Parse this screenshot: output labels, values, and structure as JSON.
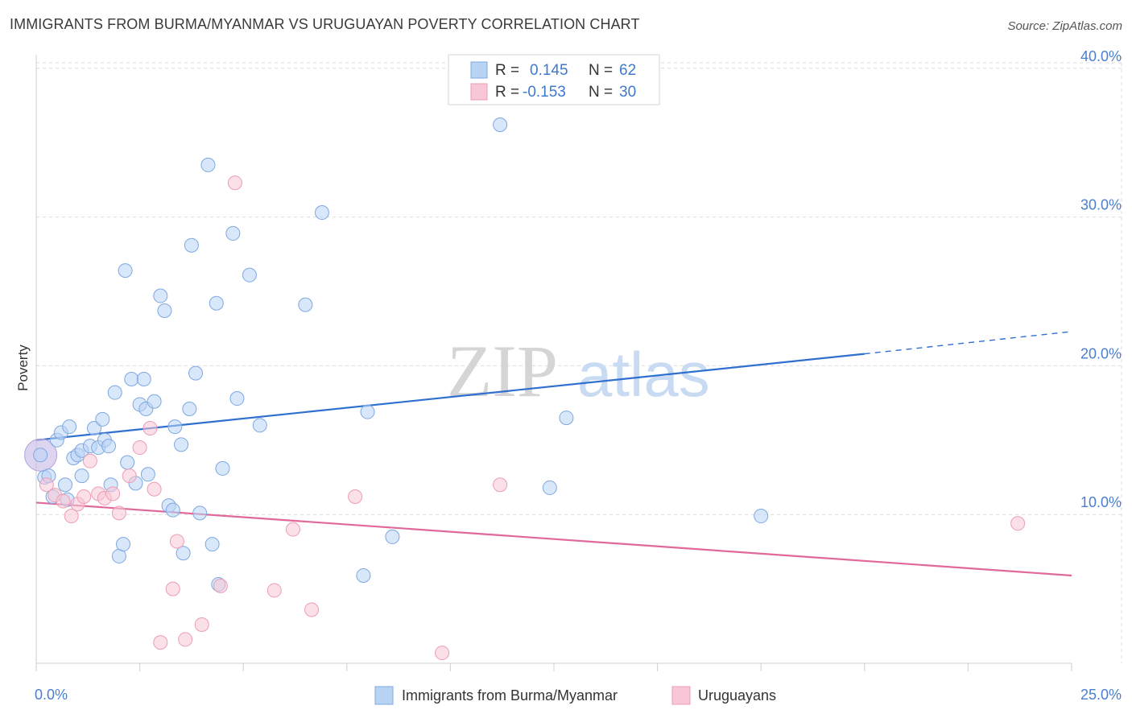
{
  "title": "IMMIGRANTS FROM BURMA/MYANMAR VS URUGUAYAN POVERTY CORRELATION CHART",
  "source": "Source: ZipAtlas.com",
  "watermark": {
    "zip": "ZIP",
    "atlas": "atlas"
  },
  "colors": {
    "blue_fill": "#b9d3f5",
    "blue_stroke": "#7ea8e0",
    "blue_line": "#2e6fd0",
    "pink_fill": "#f8c6d6",
    "pink_stroke": "#ec9db6",
    "pink_line": "#e0689a",
    "axis_text": "#4a7fd0",
    "grid": "#dcdcdc"
  },
  "legend": {
    "r_label": "R =",
    "n_label": "N =",
    "rows": [
      {
        "series": "blue",
        "r": "0.145",
        "n": "62"
      },
      {
        "series": "pink",
        "r": "-0.153",
        "n": "30"
      }
    ]
  },
  "chart_data": {
    "type": "scatter",
    "title": "IMMIGRANTS FROM BURMA/MYANMAR VS URUGUAYAN POVERTY CORRELATION CHART",
    "xlabel": "",
    "ylabel": "Poverty",
    "xlim": [
      0,
      25
    ],
    "ylim": [
      0,
      40.8
    ],
    "x_tick_labels": [
      "0.0%",
      "25.0%"
    ],
    "y_ticks": [
      10,
      20,
      30,
      40
    ],
    "y_tick_labels": [
      "10.0%",
      "20.0%",
      "30.0%",
      "40.0%"
    ],
    "grid": true,
    "series": [
      {
        "name": "Immigrants from Burma/Myanmar",
        "color": "blue",
        "points": [
          [
            0.1,
            14.0
          ],
          [
            0.2,
            12.5
          ],
          [
            0.3,
            12.6
          ],
          [
            0.4,
            11.2
          ],
          [
            0.5,
            15.0
          ],
          [
            0.6,
            15.5
          ],
          [
            0.7,
            12.0
          ],
          [
            0.75,
            11.0
          ],
          [
            0.8,
            15.9
          ],
          [
            0.9,
            13.8
          ],
          [
            1.0,
            14.0
          ],
          [
            1.1,
            14.3
          ],
          [
            1.1,
            12.6
          ],
          [
            1.3,
            14.6
          ],
          [
            1.4,
            15.8
          ],
          [
            1.5,
            14.5
          ],
          [
            1.6,
            16.4
          ],
          [
            1.65,
            15.0
          ],
          [
            1.75,
            14.6
          ],
          [
            1.8,
            12.0
          ],
          [
            1.9,
            18.2
          ],
          [
            2.0,
            7.2
          ],
          [
            2.1,
            8.0
          ],
          [
            2.15,
            26.4
          ],
          [
            2.2,
            13.5
          ],
          [
            2.3,
            19.1
          ],
          [
            2.4,
            12.1
          ],
          [
            2.5,
            17.4
          ],
          [
            2.6,
            19.1
          ],
          [
            2.65,
            17.1
          ],
          [
            2.7,
            12.7
          ],
          [
            2.85,
            17.6
          ],
          [
            3.0,
            24.7
          ],
          [
            3.1,
            23.7
          ],
          [
            3.2,
            10.6
          ],
          [
            3.3,
            10.3
          ],
          [
            3.35,
            15.9
          ],
          [
            3.5,
            14.7
          ],
          [
            3.55,
            7.4
          ],
          [
            3.7,
            17.1
          ],
          [
            3.75,
            28.1
          ],
          [
            3.85,
            19.5
          ],
          [
            3.95,
            10.1
          ],
          [
            4.15,
            33.5
          ],
          [
            4.25,
            8.0
          ],
          [
            4.35,
            24.2
          ],
          [
            4.4,
            5.3
          ],
          [
            4.5,
            13.1
          ],
          [
            4.75,
            28.9
          ],
          [
            4.85,
            17.8
          ],
          [
            5.15,
            26.1
          ],
          [
            5.4,
            16.0
          ],
          [
            6.5,
            24.1
          ],
          [
            6.9,
            30.3
          ],
          [
            7.9,
            5.9
          ],
          [
            8.0,
            16.9
          ],
          [
            8.6,
            8.5
          ],
          [
            11.2,
            36.2
          ],
          [
            12.4,
            11.8
          ],
          [
            12.8,
            16.5
          ],
          [
            17.5,
            9.9
          ]
        ]
      },
      {
        "name": "Uruguayans",
        "color": "pink",
        "points": [
          [
            0.25,
            12.0
          ],
          [
            0.45,
            11.3
          ],
          [
            0.65,
            10.9
          ],
          [
            0.85,
            9.9
          ],
          [
            1.0,
            10.7
          ],
          [
            1.15,
            11.2
          ],
          [
            1.3,
            13.6
          ],
          [
            1.5,
            11.4
          ],
          [
            1.65,
            11.1
          ],
          [
            1.85,
            11.4
          ],
          [
            2.0,
            10.1
          ],
          [
            2.25,
            12.6
          ],
          [
            2.5,
            14.5
          ],
          [
            2.75,
            15.8
          ],
          [
            2.85,
            11.7
          ],
          [
            3.0,
            1.4
          ],
          [
            3.3,
            5.0
          ],
          [
            3.4,
            8.2
          ],
          [
            3.6,
            1.6
          ],
          [
            4.0,
            2.6
          ],
          [
            4.45,
            5.2
          ],
          [
            4.8,
            32.3
          ],
          [
            5.75,
            4.9
          ],
          [
            6.2,
            9.0
          ],
          [
            6.65,
            3.6
          ],
          [
            7.7,
            11.2
          ],
          [
            9.8,
            0.7
          ],
          [
            11.2,
            12.0
          ],
          [
            23.7,
            9.4
          ]
        ]
      }
    ],
    "big_point": {
      "x": 0.05,
      "y": 14.0,
      "note": "large overlapping marker at origin"
    },
    "trendlines": [
      {
        "series": "blue",
        "x0": 0,
        "y0": 15.0,
        "x1": 20.0,
        "y1": 20.8,
        "dashed_to_x": 25.0,
        "dashed_to_y": 22.3
      },
      {
        "series": "pink",
        "x0": 0,
        "y0": 10.8,
        "x1": 25.0,
        "y1": 5.9
      }
    ]
  },
  "bottom_legend": [
    {
      "label": "Immigrants from Burma/Myanmar",
      "series": "blue"
    },
    {
      "label": "Uruguayans",
      "series": "pink"
    }
  ]
}
